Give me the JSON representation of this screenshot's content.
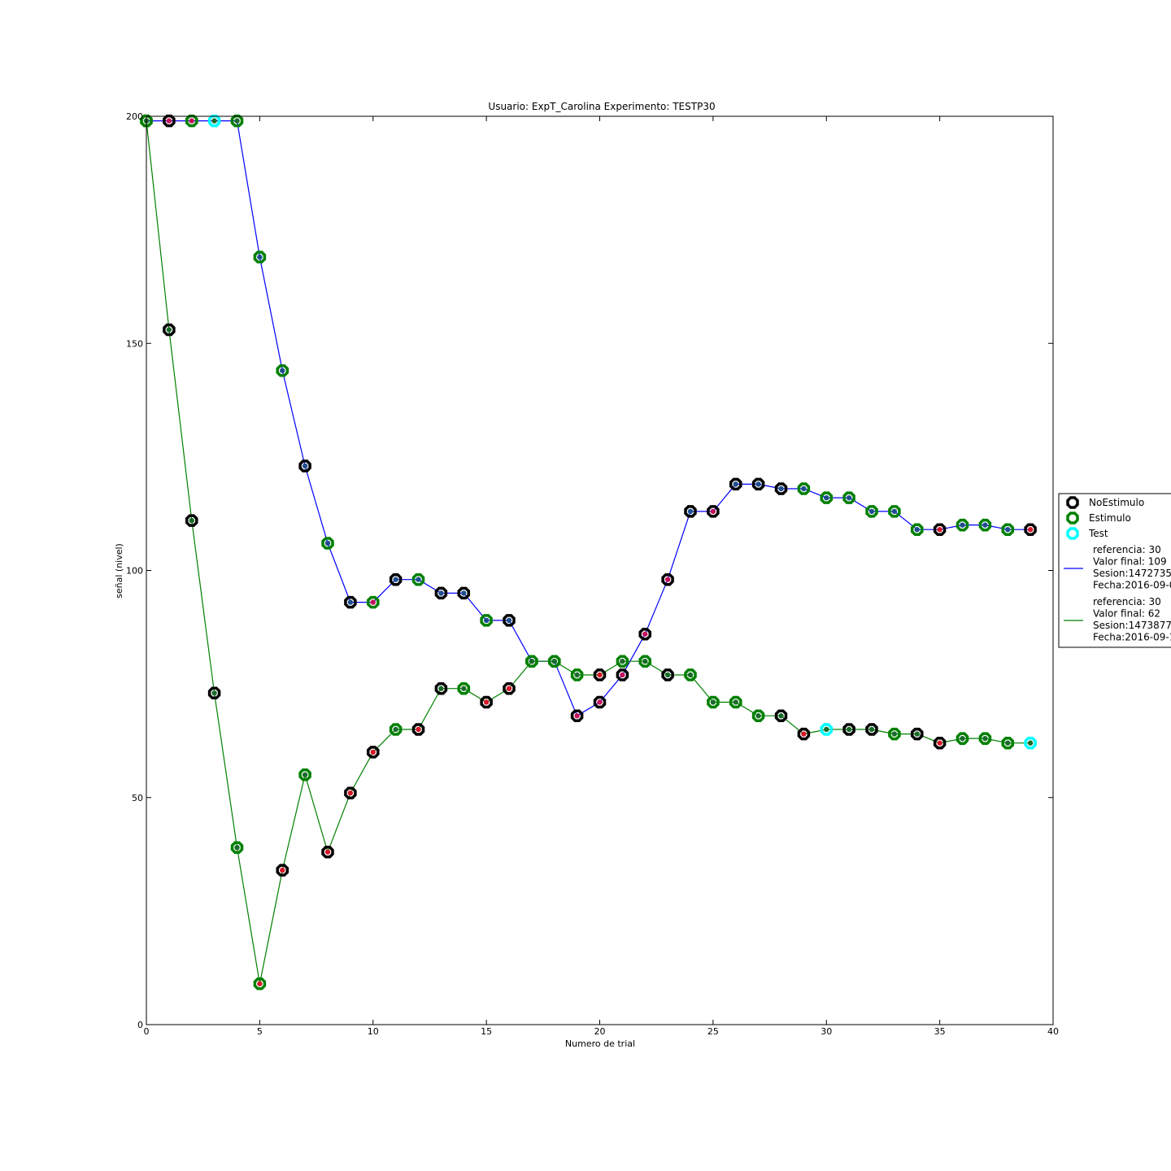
{
  "chart_data": {
    "type": "line",
    "title": "Usuario: ExpT_Carolina Experimento: TESTP30",
    "xlabel": "Numero de trial",
    "ylabel": "señal (nivel)",
    "xlim": [
      0,
      40
    ],
    "ylim": [
      0,
      200
    ],
    "x_ticks": [
      "0",
      "5",
      "10",
      "15",
      "20",
      "25",
      "30",
      "35",
      "40"
    ],
    "y_ticks": [
      "0",
      "50",
      "100",
      "150",
      "200"
    ],
    "grid": false,
    "legend_position": "right",
    "legend": {
      "marker_entries": [
        {
          "label": "NoEstimulo",
          "color": "#000000"
        },
        {
          "label": "Estimulo",
          "color": "#008000"
        },
        {
          "label": "Test",
          "color": "#00ffff"
        }
      ],
      "line_entries": [
        {
          "color": "#0000ff",
          "lines": [
            "referencia: 30",
            "Valor final: 109",
            "Sesion:1472735",
            "Fecha:2016-09-0"
          ]
        },
        {
          "color": "#008000",
          "lines": [
            "referencia: 30",
            "Valor final: 62",
            "Sesion:1473877",
            "Fecha:2016-09-1"
          ]
        }
      ]
    },
    "marker_colors": {
      "NoEstimulo": "#000000",
      "Estimulo": "#008000",
      "Test": "#00ffff"
    },
    "response_colors": {
      "b": "#1f4e8c",
      "r": "#d6182a",
      "m": "#c4145a",
      "g": "#1a6b2a"
    },
    "series": [
      {
        "color": "#0000ff",
        "x": [
          0,
          1,
          2,
          3,
          4,
          5,
          6,
          7,
          8,
          9,
          10,
          11,
          12,
          13,
          14,
          15,
          16,
          17,
          18,
          19,
          20,
          21,
          22,
          23,
          24,
          25,
          26,
          27,
          28,
          29,
          30,
          31,
          32,
          33,
          34,
          35,
          36,
          37,
          38,
          39
        ],
        "y": [
          199,
          199,
          199,
          199,
          199,
          169,
          144,
          123,
          106,
          93,
          93,
          98,
          98,
          95,
          95,
          89,
          89,
          80,
          80,
          68,
          71,
          77,
          86,
          98,
          113,
          113,
          119,
          119,
          118,
          118,
          116,
          116,
          113,
          113,
          109,
          109,
          110,
          110,
          109,
          109
        ],
        "markers": [
          "Estimulo",
          "NoEstimulo",
          "Estimulo",
          "Test",
          "Estimulo",
          "Estimulo",
          "Estimulo",
          "NoEstimulo",
          "Estimulo",
          "NoEstimulo",
          "Estimulo",
          "NoEstimulo",
          "Estimulo",
          "NoEstimulo",
          "NoEstimulo",
          "Estimulo",
          "NoEstimulo",
          "Estimulo",
          "Estimulo",
          "NoEstimulo",
          "NoEstimulo",
          "NoEstimulo",
          "NoEstimulo",
          "NoEstimulo",
          "NoEstimulo",
          "NoEstimulo",
          "NoEstimulo",
          "NoEstimulo",
          "NoEstimulo",
          "Estimulo",
          "Estimulo",
          "Estimulo",
          "Estimulo",
          "Estimulo",
          "Estimulo",
          "NoEstimulo",
          "Estimulo",
          "Estimulo",
          "Estimulo",
          "NoEstimulo"
        ],
        "responses": [
          "g",
          "m",
          "m",
          "g",
          "g",
          "b",
          "b",
          "b",
          "b",
          "b",
          "m",
          "b",
          "b",
          "b",
          "b",
          "b",
          "b",
          "g",
          "g",
          "m",
          "m",
          "m",
          "m",
          "m",
          "b",
          "m",
          "b",
          "b",
          "b",
          "b",
          "b",
          "b",
          "b",
          "b",
          "b",
          "r",
          "b",
          "b",
          "b",
          "r"
        ]
      },
      {
        "color": "#008000",
        "x": [
          0,
          1,
          2,
          3,
          4,
          5,
          6,
          7,
          8,
          9,
          10,
          11,
          12,
          13,
          14,
          15,
          16,
          17,
          18,
          19,
          20,
          21,
          22,
          23,
          24,
          25,
          26,
          27,
          28,
          29,
          30,
          31,
          32,
          33,
          34,
          35,
          36,
          37,
          38,
          39
        ],
        "y": [
          199,
          153,
          111,
          73,
          39,
          9,
          34,
          55,
          38,
          51,
          60,
          65,
          65,
          74,
          74,
          71,
          74,
          80,
          80,
          77,
          77,
          80,
          80,
          77,
          77,
          71,
          71,
          68,
          68,
          64,
          65,
          65,
          65,
          64,
          64,
          62,
          63,
          63,
          62,
          62
        ],
        "markers": [
          "Estimulo",
          "NoEstimulo",
          "NoEstimulo",
          "NoEstimulo",
          "Estimulo",
          "Estimulo",
          "NoEstimulo",
          "Estimulo",
          "NoEstimulo",
          "NoEstimulo",
          "NoEstimulo",
          "Estimulo",
          "NoEstimulo",
          "NoEstimulo",
          "Estimulo",
          "NoEstimulo",
          "NoEstimulo",
          "Estimulo",
          "Estimulo",
          "Estimulo",
          "NoEstimulo",
          "Estimulo",
          "Estimulo",
          "NoEstimulo",
          "Estimulo",
          "Estimulo",
          "Estimulo",
          "Estimulo",
          "NoEstimulo",
          "NoEstimulo",
          "Test",
          "NoEstimulo",
          "NoEstimulo",
          "Estimulo",
          "NoEstimulo",
          "NoEstimulo",
          "Estimulo",
          "Estimulo",
          "Estimulo",
          "Test"
        ],
        "responses": [
          "g",
          "g",
          "g",
          "g",
          "g",
          "r",
          "r",
          "g",
          "r",
          "r",
          "r",
          "g",
          "r",
          "g",
          "g",
          "r",
          "r",
          "g",
          "g",
          "g",
          "r",
          "g",
          "g",
          "g",
          "g",
          "g",
          "g",
          "g",
          "g",
          "r",
          "g",
          "g",
          "g",
          "g",
          "g",
          "r",
          "g",
          "g",
          "g",
          "g"
        ]
      }
    ]
  }
}
